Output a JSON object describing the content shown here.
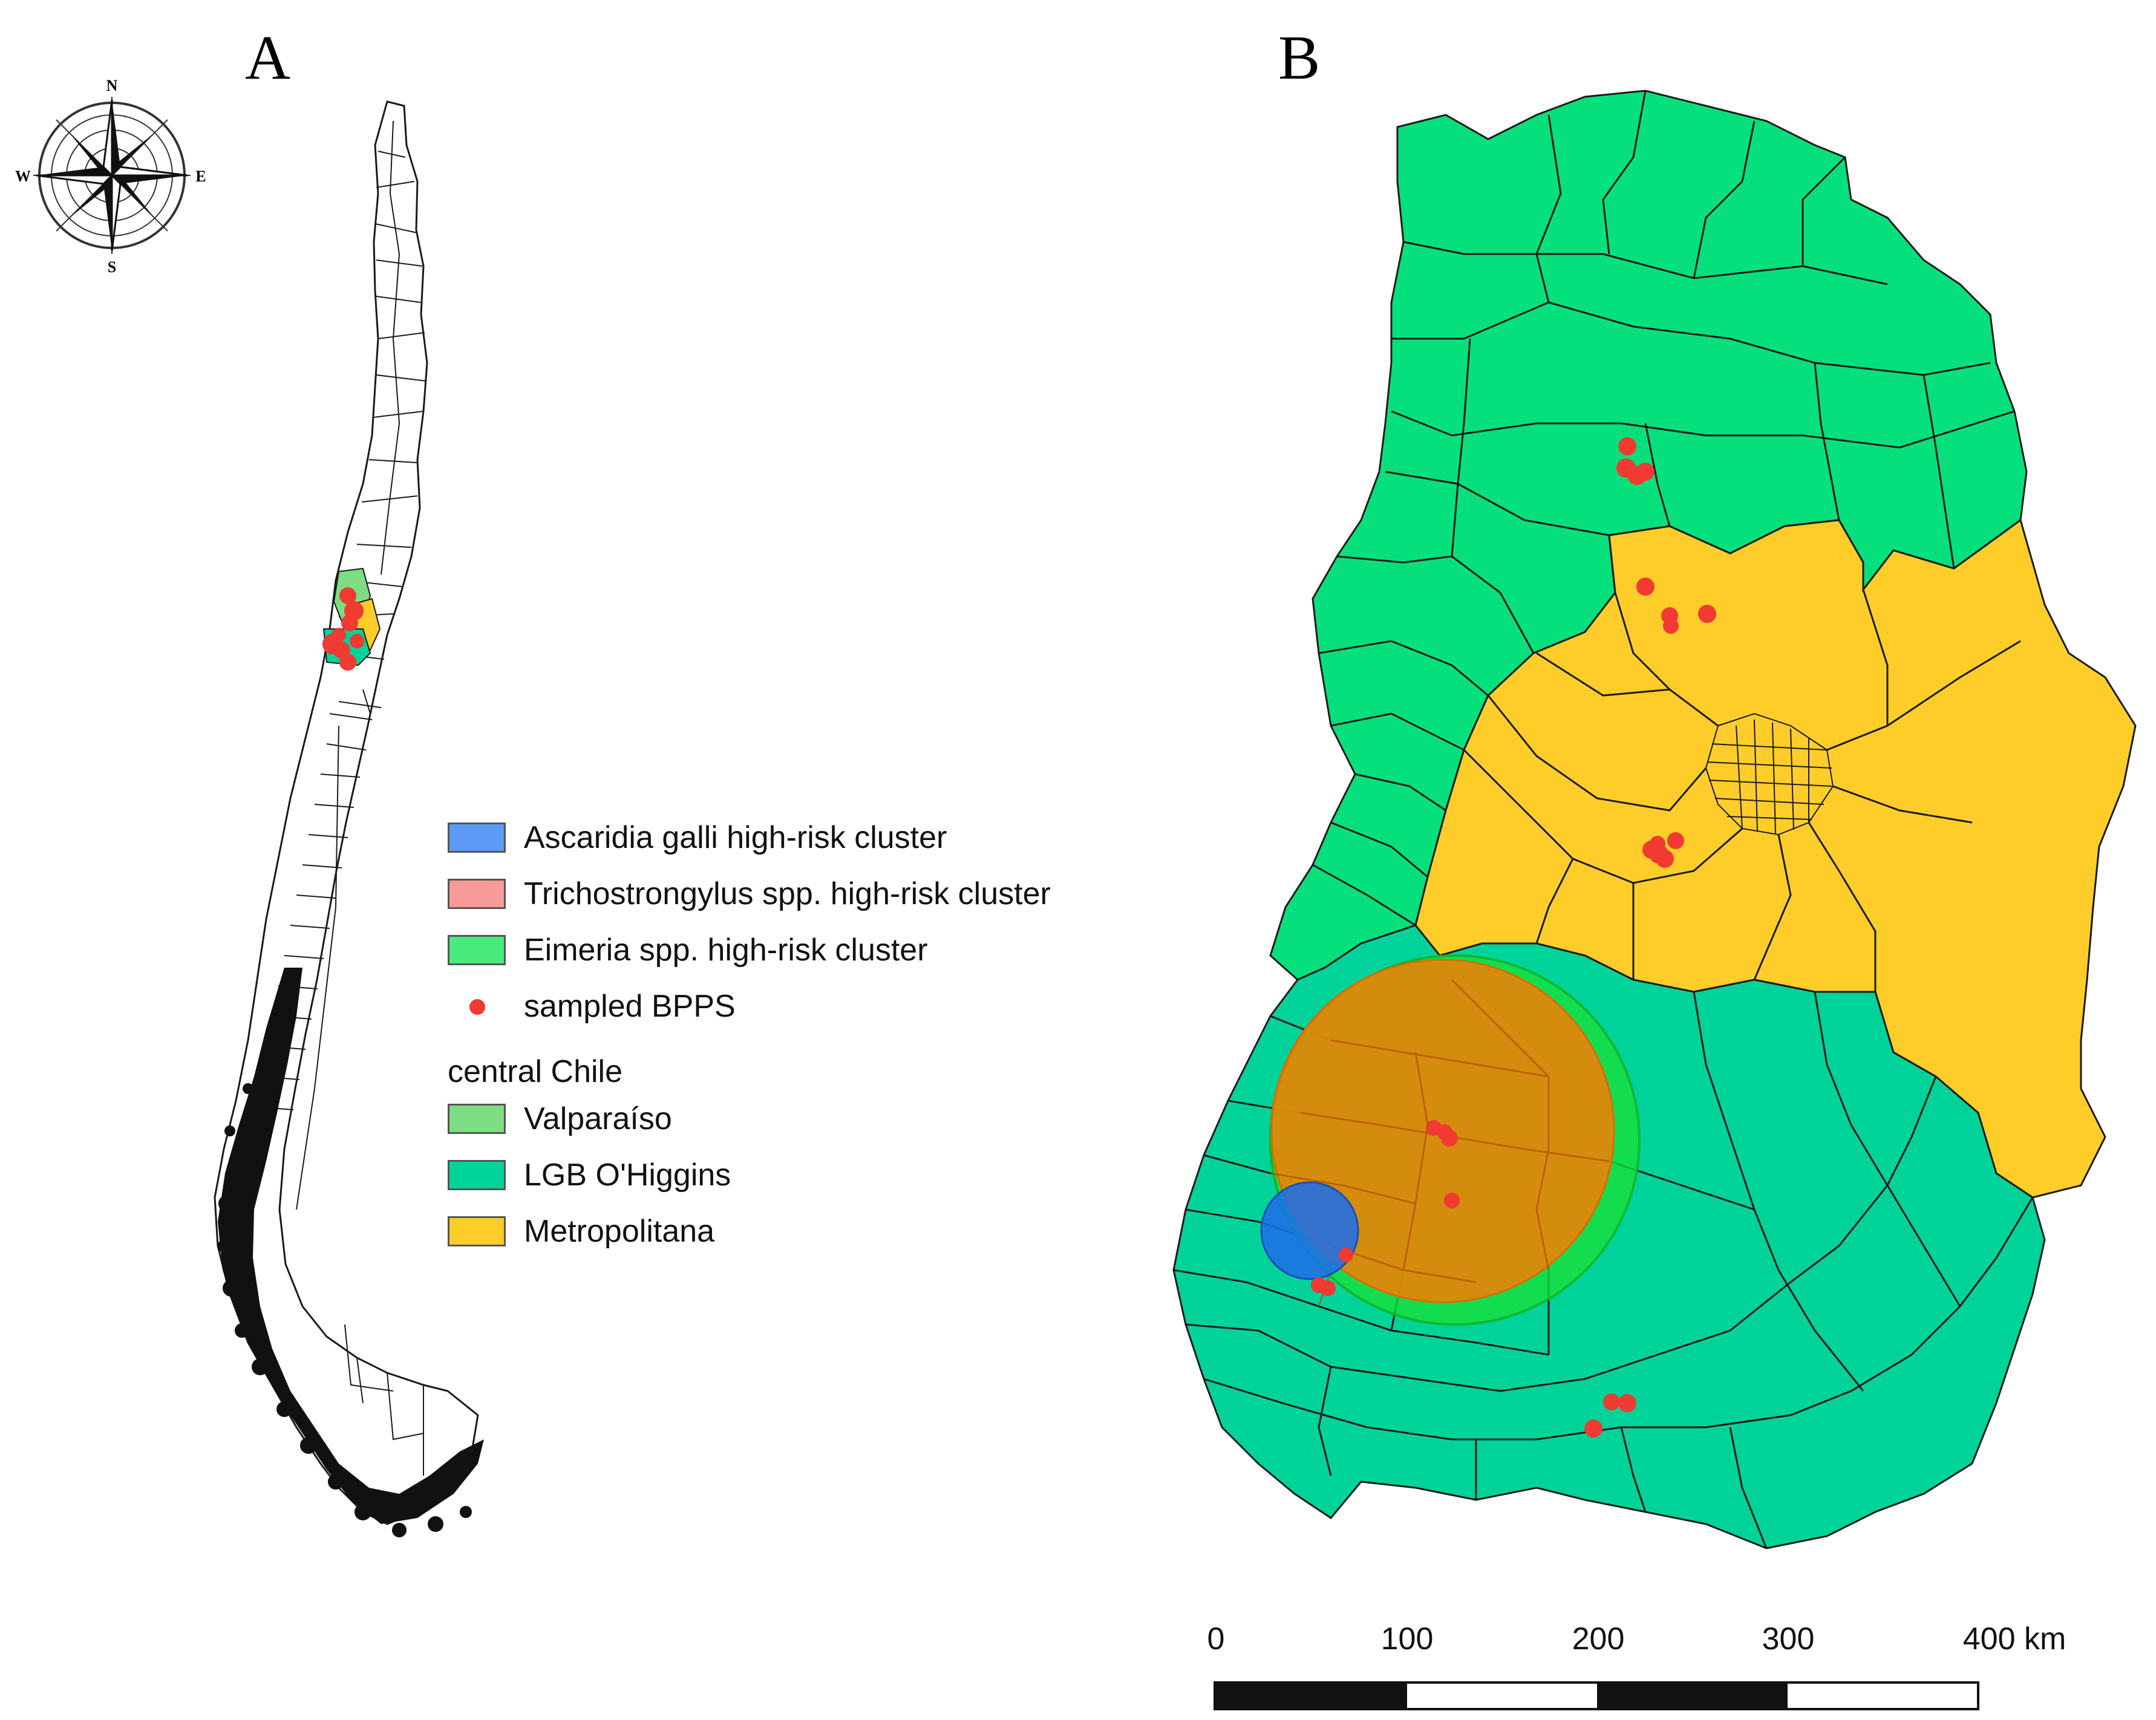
{
  "panels": {
    "a_label": "A",
    "b_label": "B"
  },
  "compass": {
    "n": "N",
    "s": "S",
    "e": "E",
    "w": "W"
  },
  "legend": {
    "items": [
      {
        "label": "Ascaridia galli high-risk cluster",
        "color": "#5b9bf5",
        "kind": "swatch"
      },
      {
        "label": "Trichostrongylus spp. high-risk cluster",
        "color": "#f79a98",
        "kind": "swatch"
      },
      {
        "label": "Eimeria spp. high-risk cluster",
        "color": "#49ec7c",
        "kind": "swatch"
      },
      {
        "label": "sampled BPPS",
        "color": "#f03a32",
        "kind": "dot"
      }
    ],
    "region_heading": "central Chile",
    "regions": [
      {
        "label": "Valparaíso",
        "color": "#7ddd83"
      },
      {
        "label": "LGB O'Higgins",
        "color": "#00d39a"
      },
      {
        "label": "Metropolitana",
        "color": "#fecd2a"
      }
    ]
  },
  "scale_bar": {
    "ticks": [
      "0",
      "100",
      "200",
      "300",
      "400 km"
    ]
  },
  "colors": {
    "valparaiso": "#06e07c",
    "metropolitana": "#fecd2a",
    "ohiggins": "#00d39a",
    "outline": "#1a1a1a",
    "point": "#f03a32",
    "eimeria_ring": "#18e03a",
    "trichostrongylus": "#ff7a00",
    "ascaridia": "#1e6ee8"
  }
}
